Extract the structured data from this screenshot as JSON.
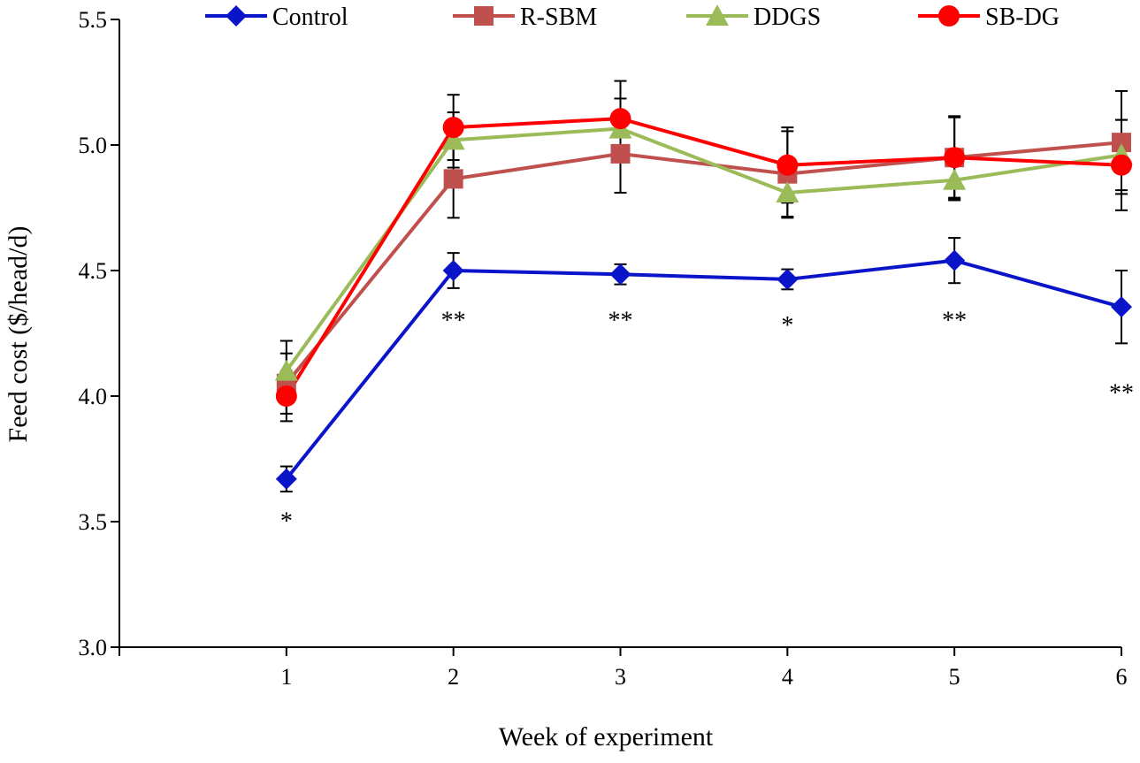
{
  "chart_data": {
    "type": "line",
    "title": "",
    "xlabel": "Week of experiment",
    "ylabel": "Feed cost ($/head/d)",
    "x": [
      1,
      2,
      3,
      4,
      5,
      6
    ],
    "x_tick_labels": [
      "1",
      "2",
      "3",
      "4",
      "5",
      "6"
    ],
    "ylim": [
      3.0,
      5.5
    ],
    "y_ticks": [
      3.0,
      3.5,
      4.0,
      4.5,
      5.0,
      5.5
    ],
    "y_tick_labels": [
      "3.0",
      "3.5",
      "4.0",
      "4.5",
      "5.0",
      "5.5"
    ],
    "grid": false,
    "legend_position": "top",
    "series": [
      {
        "name": "Control",
        "color": "#0a14c8",
        "marker": "diamond",
        "values": [
          3.67,
          4.5,
          4.485,
          4.465,
          4.54,
          4.355
        ],
        "errors": [
          0.05,
          0.07,
          0.04,
          0.04,
          0.09,
          0.145
        ]
      },
      {
        "name": "R-SBM",
        "color": "#c0504d",
        "marker": "square",
        "values": [
          4.05,
          4.865,
          4.965,
          4.885,
          4.95,
          5.01
        ],
        "errors": [
          0.12,
          0.155,
          0.155,
          0.17,
          0.165,
          0.205
        ]
      },
      {
        "name": "DDGS",
        "color": "#9bbb59",
        "marker": "triangle",
        "values": [
          4.1,
          5.02,
          5.065,
          4.81,
          4.86,
          4.96
        ],
        "errors": [
          0.12,
          0.11,
          0.12,
          0.1,
          0.08,
          0.14
        ]
      },
      {
        "name": "SB-DG",
        "color": "#ff0000",
        "marker": "circle",
        "values": [
          4.0,
          5.07,
          5.105,
          4.92,
          4.95,
          4.92
        ],
        "errors": [
          0.1,
          0.13,
          0.15,
          0.15,
          0.16,
          0.18
        ]
      }
    ],
    "annotations": [
      {
        "x": 1,
        "y": 3.47,
        "text": "*"
      },
      {
        "x": 2,
        "y": 4.27,
        "text": "**"
      },
      {
        "x": 3,
        "y": 4.27,
        "text": "**"
      },
      {
        "x": 4,
        "y": 4.25,
        "text": "*"
      },
      {
        "x": 5,
        "y": 4.27,
        "text": "**"
      },
      {
        "x": 6,
        "y": 3.98,
        "text": "**"
      }
    ]
  }
}
